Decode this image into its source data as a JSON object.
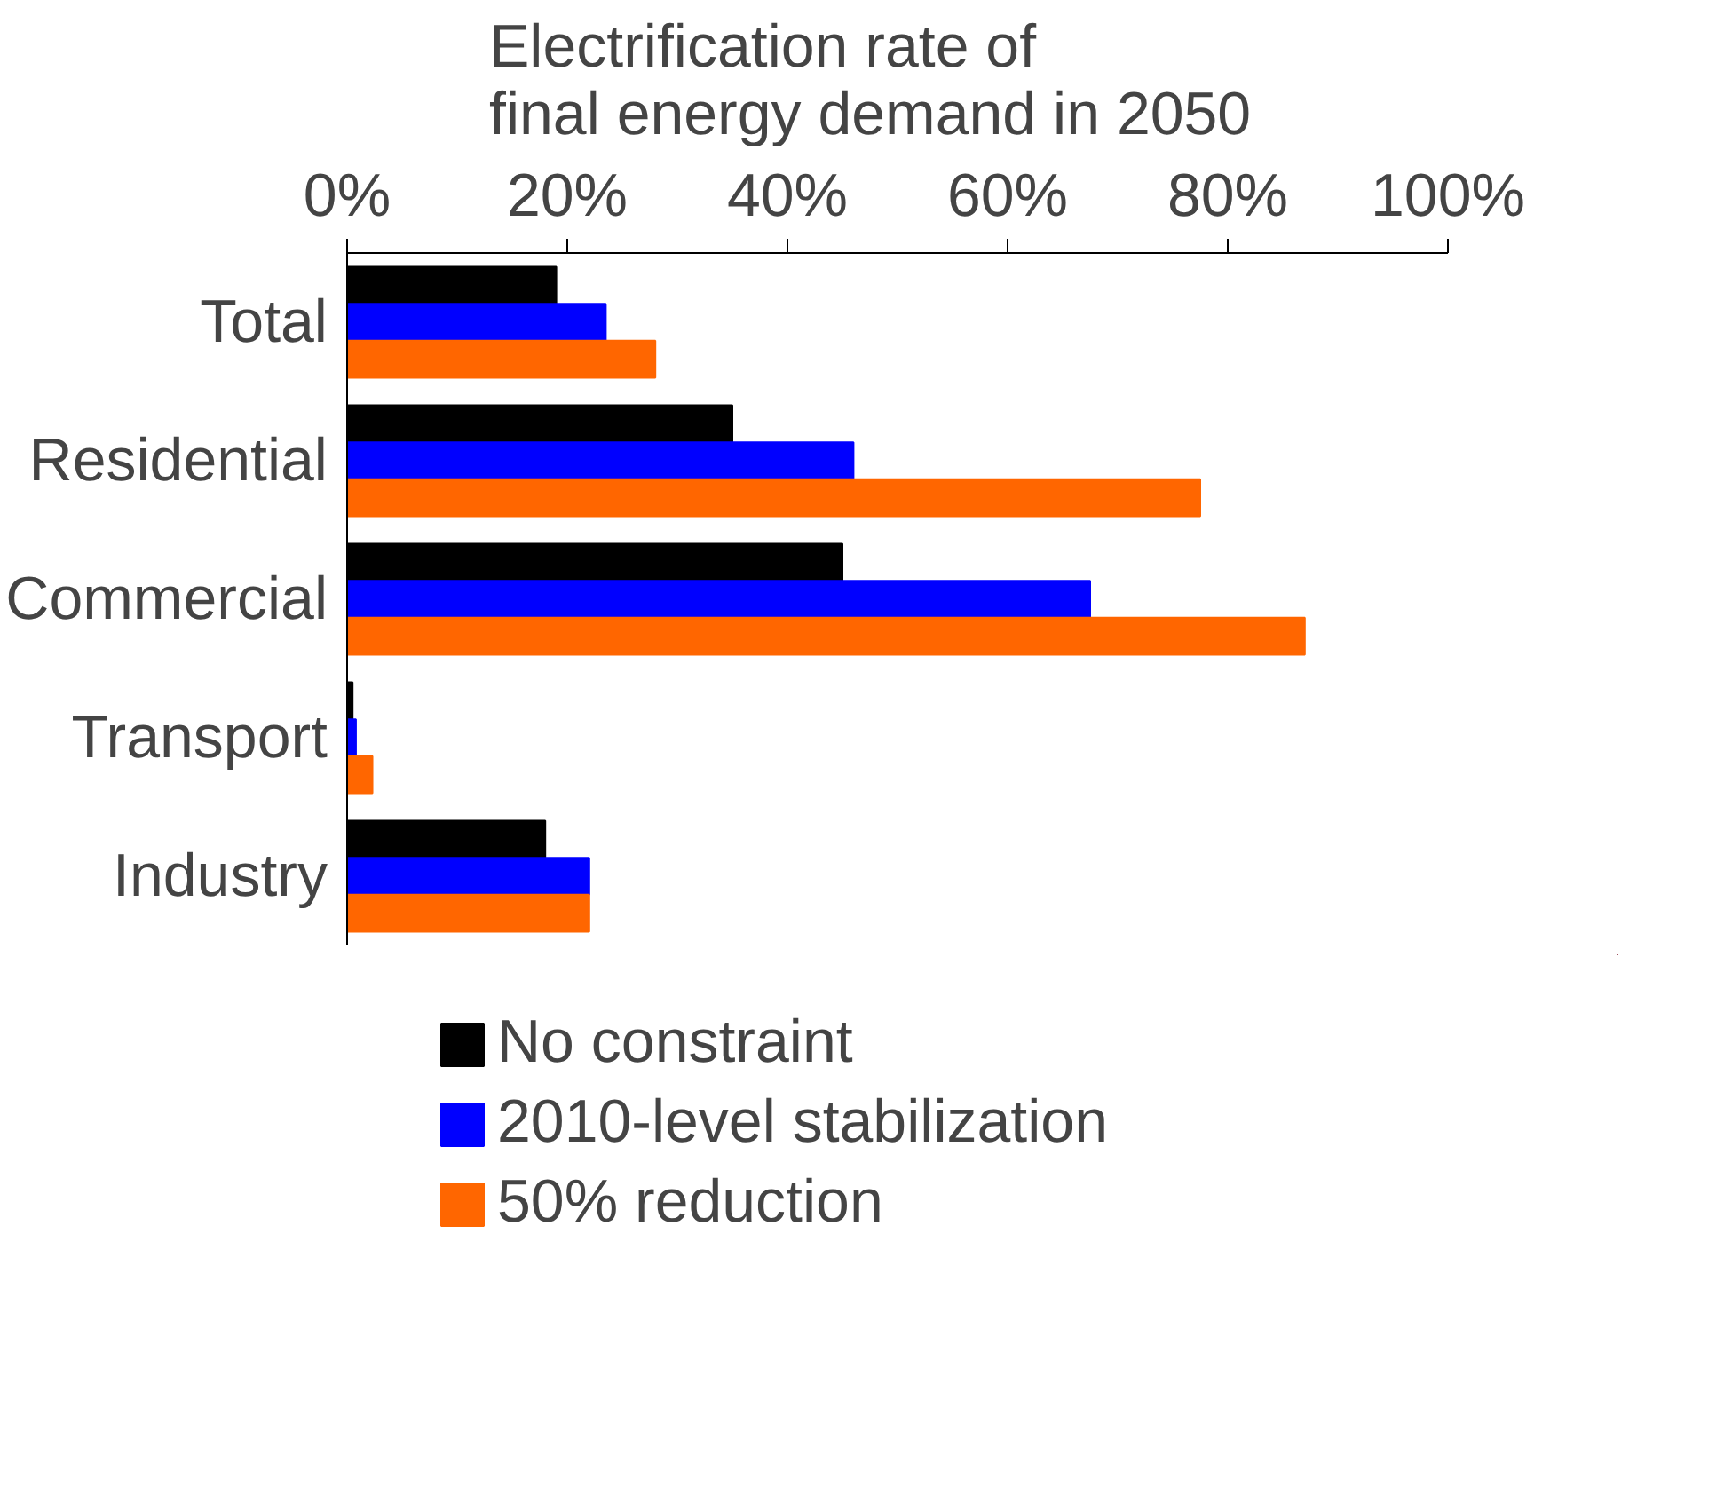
{
  "chart_data": {
    "type": "bar",
    "orientation": "horizontal",
    "title": "Electrification rate of\nfinal energy demand in 2050",
    "categories": [
      "Total",
      "Residential",
      "Commercial",
      "Transport",
      "Industry"
    ],
    "series": [
      {
        "name": "No constraint",
        "color": "#000000",
        "values": [
          19,
          35,
          45,
          0.5,
          18
        ]
      },
      {
        "name": "2010-level stabilization",
        "color": "#0000ff",
        "values": [
          23.5,
          46,
          67.5,
          0.8,
          22
        ]
      },
      {
        "name": "50% reduction",
        "color": "#ff6600",
        "values": [
          28,
          77.5,
          87,
          2.3,
          22
        ]
      }
    ],
    "xlim": [
      0,
      100
    ],
    "xticks": [
      {
        "value": 0,
        "label": "0%"
      },
      {
        "value": 20,
        "label": "20%"
      },
      {
        "value": 40,
        "label": "40%"
      },
      {
        "value": 60,
        "label": "60%"
      },
      {
        "value": 80,
        "label": "80%"
      },
      {
        "value": 100,
        "label": "100%"
      }
    ],
    "grid": false,
    "legend": "bottom"
  }
}
